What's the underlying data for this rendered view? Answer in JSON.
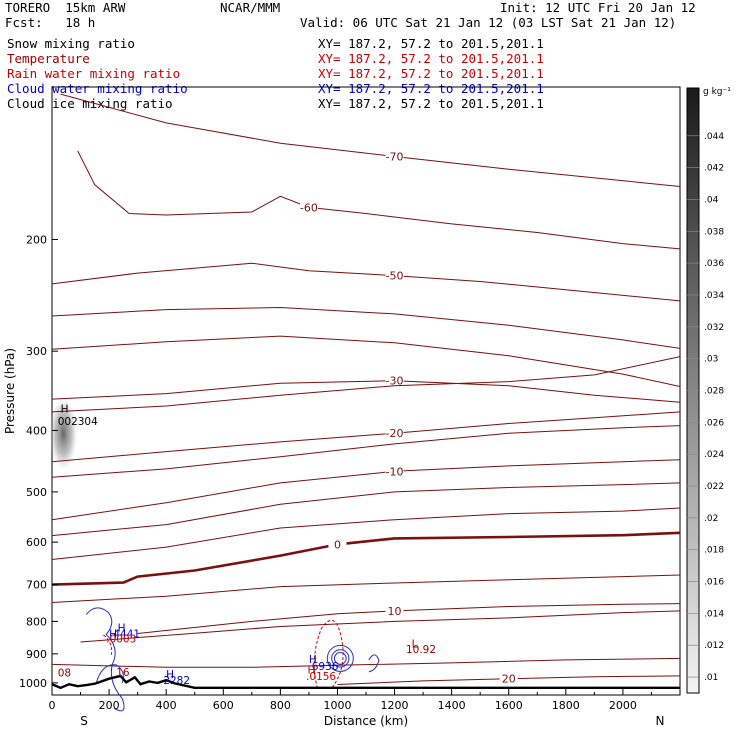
{
  "header": {
    "model": "TORERO  15km ARW",
    "fcst": "Fcst:   18 h",
    "center": "NCAR/MMM",
    "init": "Init: 12 UTC Fri 20 Jan 12",
    "valid": "Valid: 06 UTC Sat 21 Jan 12 (03 LST Sat 21 Jan 12)"
  },
  "fields": [
    {
      "name": "Snow mixing ratio",
      "xy": "XY= 187.2, 57.2 to 201.5,201.1",
      "color": "#000000"
    },
    {
      "name": "Temperature",
      "xy": "XY= 187.2, 57.2 to 201.5,201.1",
      "color": "#a00000"
    },
    {
      "name": "Rain water mixing ratio",
      "xy": "XY= 187.2, 57.2 to 201.5,201.1",
      "color": "#cc0000"
    },
    {
      "name": "Cloud water mixing ratio",
      "xy": "XY= 187.2, 57.2 to 201.5,201.1",
      "color": "#0000cc"
    },
    {
      "name": "Cloud ice mixing ratio",
      "xy": "XY= 187.2, 57.2 to 201.5,201.1",
      "color": "#000000"
    }
  ],
  "chart_data": {
    "type": "contour",
    "xlabel": "Distance (km)",
    "ylabel": "Pressure (hPa)",
    "x_ticks": [
      0,
      200,
      400,
      600,
      800,
      1000,
      1200,
      1400,
      1600,
      1800,
      2000
    ],
    "y_ticks": [
      200,
      300,
      400,
      500,
      600,
      700,
      800,
      900,
      1000
    ],
    "xlim": [
      0,
      2200
    ],
    "ylim": [
      1045,
      115
    ],
    "y_scale": "log",
    "endpoints": {
      "left": "S",
      "right": "N"
    },
    "colorbar": {
      "unit": "g kg⁻¹",
      "ticks": [
        ".01",
        ".012",
        ".014",
        ".016",
        ".018",
        ".02",
        ".022",
        ".024",
        ".026",
        ".028",
        ".03",
        ".032",
        ".034",
        ".036",
        ".038",
        ".04",
        ".042",
        ".044"
      ]
    },
    "temperature_isotherms": [
      {
        "label": "-70",
        "points": [
          [
            30,
            118
          ],
          [
            400,
            131
          ],
          [
            800,
            141
          ],
          [
            1200,
            148
          ],
          [
            1600,
            155
          ],
          [
            2200,
            165
          ]
        ]
      },
      {
        "label": "-60",
        "points": [
          [
            90,
            145
          ],
          [
            150,
            164
          ],
          [
            270,
            182
          ],
          [
            400,
            183
          ],
          [
            700,
            181
          ],
          [
            800,
            171
          ],
          [
            900,
            178
          ],
          [
            1100,
            182
          ],
          [
            1400,
            189
          ],
          [
            1700,
            195
          ],
          [
            2000,
            203
          ],
          [
            2200,
            207
          ]
        ]
      },
      {
        "label": "-50",
        "points": [
          [
            0,
            235
          ],
          [
            300,
            226
          ],
          [
            700,
            218
          ],
          [
            900,
            224
          ],
          [
            1200,
            228
          ],
          [
            1500,
            233
          ],
          [
            1800,
            240
          ],
          [
            2200,
            250
          ]
        ]
      },
      {
        "label": "",
        "points": [
          [
            0,
            264
          ],
          [
            400,
            258
          ],
          [
            800,
            256
          ],
          [
            1200,
            262
          ],
          [
            1600,
            273
          ],
          [
            2000,
            288
          ],
          [
            2200,
            297
          ]
        ]
      },
      {
        "label": "",
        "points": [
          [
            0,
            298
          ],
          [
            400,
            290
          ],
          [
            800,
            284
          ],
          [
            1200,
            291
          ],
          [
            1600,
            305
          ],
          [
            2000,
            326
          ],
          [
            2200,
            341
          ]
        ]
      },
      {
        "label": "-30",
        "points": [
          [
            0,
            357
          ],
          [
            400,
            350
          ],
          [
            800,
            337
          ],
          [
            1200,
            334
          ],
          [
            1600,
            340
          ],
          [
            1900,
            352
          ],
          [
            2200,
            361
          ]
        ]
      },
      {
        "label": "",
        "points": [
          [
            0,
            374
          ],
          [
            400,
            366
          ],
          [
            800,
            352
          ],
          [
            1200,
            340
          ],
          [
            1600,
            335
          ],
          [
            1900,
            327
          ],
          [
            2200,
            306
          ]
        ]
      },
      {
        "label": "-20",
        "points": [
          [
            0,
            448
          ],
          [
            400,
            432
          ],
          [
            800,
            417
          ],
          [
            1200,
            404
          ],
          [
            1600,
            390
          ],
          [
            1900,
            382
          ],
          [
            2200,
            374
          ]
        ]
      },
      {
        "label": "",
        "points": [
          [
            0,
            474
          ],
          [
            400,
            460
          ],
          [
            800,
            440
          ],
          [
            1200,
            420
          ],
          [
            1600,
            404
          ],
          [
            2000,
            396
          ],
          [
            2200,
            393
          ]
        ]
      },
      {
        "label": "-10",
        "points": [
          [
            0,
            553
          ],
          [
            400,
            520
          ],
          [
            800,
            484
          ],
          [
            1200,
            464
          ],
          [
            1600,
            455
          ],
          [
            2000,
            448
          ],
          [
            2200,
            445
          ]
        ]
      },
      {
        "label": "",
        "points": [
          [
            0,
            586
          ],
          [
            400,
            563
          ],
          [
            800,
            523
          ],
          [
            1200,
            500
          ],
          [
            1600,
            492
          ],
          [
            2000,
            487
          ],
          [
            2200,
            484
          ]
        ]
      },
      {
        "label": "",
        "points": [
          [
            0,
            639
          ],
          [
            400,
            611
          ],
          [
            800,
            570
          ],
          [
            1200,
            553
          ],
          [
            1600,
            541
          ],
          [
            2000,
            536
          ],
          [
            2200,
            530
          ]
        ]
      },
      {
        "label": "0",
        "bold": true,
        "points": [
          [
            0,
            700
          ],
          [
            250,
            695
          ],
          [
            300,
            680
          ],
          [
            500,
            665
          ],
          [
            800,
            630
          ],
          [
            1000,
            605
          ],
          [
            1200,
            592
          ],
          [
            1600,
            589
          ],
          [
            2000,
            585
          ],
          [
            2200,
            580
          ]
        ]
      },
      {
        "label": "",
        "points": [
          [
            0,
            747
          ],
          [
            400,
            730
          ],
          [
            800,
            705
          ],
          [
            1200,
            696
          ],
          [
            1600,
            688
          ],
          [
            2000,
            680
          ],
          [
            2200,
            676
          ]
        ]
      },
      {
        "label": "10",
        "points": [
          [
            300,
            836
          ],
          [
            700,
            800
          ],
          [
            1000,
            778
          ],
          [
            1200,
            770
          ],
          [
            1600,
            758
          ],
          [
            2000,
            752
          ],
          [
            2200,
            750
          ]
        ]
      },
      {
        "label": "",
        "points": [
          [
            100,
            862
          ],
          [
            500,
            835
          ],
          [
            800,
            815
          ],
          [
            1200,
            800
          ],
          [
            1600,
            790
          ],
          [
            2000,
            775
          ],
          [
            2200,
            770
          ]
        ]
      },
      {
        "label": "",
        "points": [
          [
            0,
            935
          ],
          [
            400,
            945
          ],
          [
            700,
            945
          ],
          [
            1000,
            938
          ],
          [
            1400,
            930
          ],
          [
            1800,
            920
          ],
          [
            2200,
            915
          ]
        ]
      },
      {
        "label": "20",
        "points": [
          [
            1000,
            1006
          ],
          [
            1300,
            993
          ],
          [
            1600,
            985
          ],
          [
            1900,
            978
          ],
          [
            2200,
            975
          ]
        ]
      }
    ],
    "annotations": [
      {
        "text": "H",
        "x": 30,
        "p": 375,
        "color": "#000000"
      },
      {
        "text": "002304",
        "x": 20,
        "p": 392,
        "color": "#000000"
      },
      {
        "text": "H",
        "x": 230,
        "p": 830,
        "color": "#0000cc"
      },
      {
        "text": "H",
        "x": 200,
        "p": 848,
        "color": "#0000cc"
      },
      {
        "text": "4441",
        "x": 215,
        "p": 848,
        "color": "#0000cc"
      },
      {
        "text": ".0003",
        "x": 190,
        "p": 863,
        "color": "#cc0000"
      },
      {
        "text": "H",
        "x": 400,
        "p": 982,
        "color": "#0000cc"
      },
      {
        "text": "2282",
        "x": 390,
        "p": 1005,
        "color": "#0000cc"
      },
      {
        "text": "L",
        "x": 1260,
        "p": 880,
        "color": "#a00000"
      },
      {
        "text": "10.92",
        "x": 1240,
        "p": 898,
        "color": "#a00000"
      },
      {
        "text": "H",
        "x": 900,
        "p": 930,
        "color": "#0000cc"
      },
      {
        "text": "6936",
        "x": 910,
        "p": 955,
        "color": "#0000cc"
      },
      {
        "text": "H",
        "x": 895,
        "p": 966,
        "color": "#cc0000"
      },
      {
        "text": ".0156",
        "x": 890,
        "p": 990,
        "color": "#cc0000"
      },
      {
        "text": "08",
        "x": 20,
        "p": 977,
        "color": "#a00000"
      },
      {
        "text": "16",
        "x": 225,
        "p": 975,
        "color": "#a00000"
      }
    ],
    "terrain": [
      [
        0,
        1005
      ],
      [
        30,
        1018
      ],
      [
        60,
        1005
      ],
      [
        90,
        1012
      ],
      [
        120,
        1008
      ],
      [
        150,
        1003
      ],
      [
        200,
        985
      ],
      [
        240,
        975
      ],
      [
        260,
        998
      ],
      [
        290,
        980
      ],
      [
        310,
        1005
      ],
      [
        340,
        995
      ],
      [
        370,
        1000
      ],
      [
        400,
        990
      ],
      [
        430,
        1002
      ],
      [
        500,
        1018
      ],
      [
        2200,
        1018
      ]
    ]
  }
}
